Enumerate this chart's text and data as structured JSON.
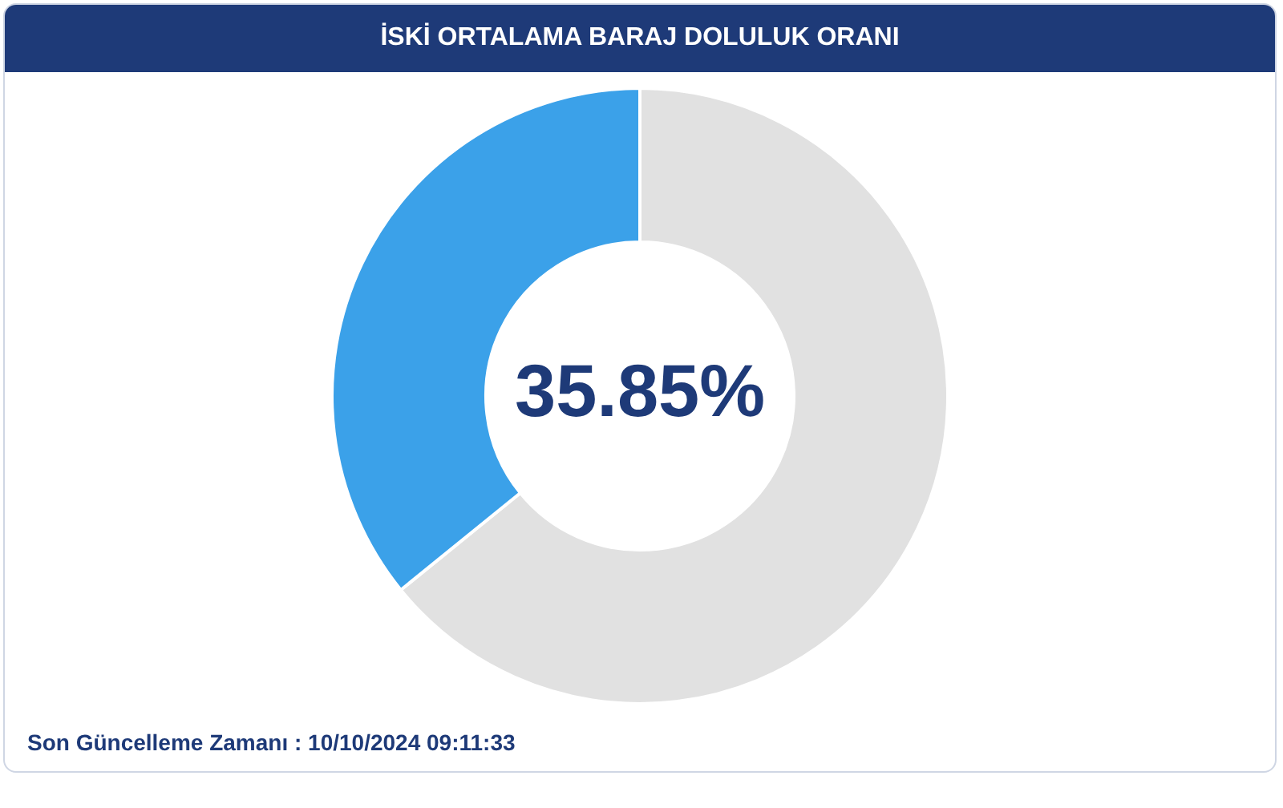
{
  "chart_data": {
    "type": "donut",
    "title": "İSKİ ORTALAMA BARAJ DOLULUK ORANI",
    "categories": [
      null,
      null
    ],
    "values": [
      64.15,
      35.85
    ],
    "colors": [
      "#e1e1e1",
      "#3ba1e9"
    ],
    "value_labels": [
      null,
      "35.85%"
    ],
    "legend": false,
    "annotations": [
      "Son Güncelleme Zamanı : 10/10/2024 09:11:33"
    ]
  }
}
